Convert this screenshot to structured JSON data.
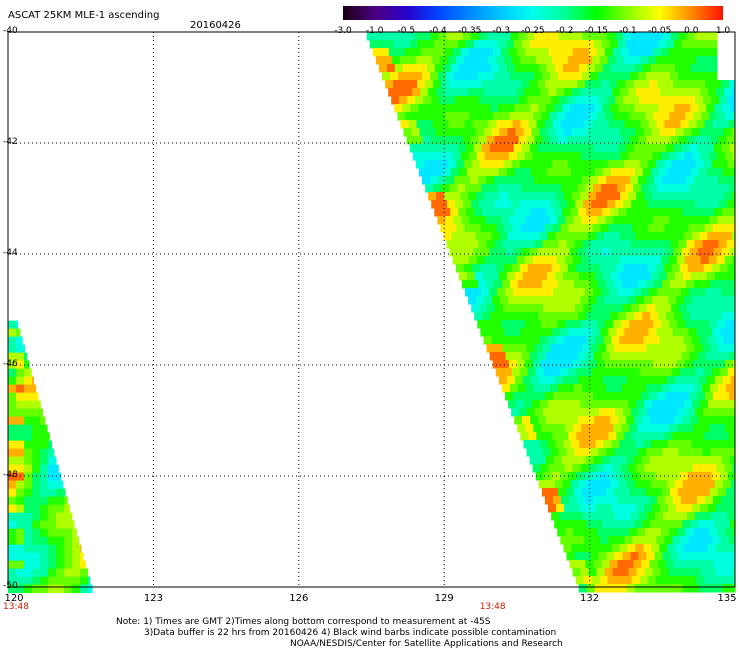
{
  "header": {
    "title": "ASCAT 25KM MLE-1 ascending",
    "date": "20160426"
  },
  "colorbar": {
    "labels": [
      "-3.0",
      "-1.0",
      "-0.5",
      "-0.4",
      "-0.35",
      "-0.3",
      "-0.25",
      "-0.2",
      "-0.15",
      "-0.1",
      "-0.05",
      "0.0",
      "1.0"
    ],
    "colors": [
      "#1a0010",
      "#4a0080",
      "#2a00cc",
      "#0044ff",
      "#0088ff",
      "#00c8ff",
      "#00ffee",
      "#00ff99",
      "#00ff00",
      "#88ff00",
      "#ffff00",
      "#ff8800",
      "#ff1100"
    ]
  },
  "chart_data": {
    "type": "heatmap",
    "title": "ASCAT 25KM MLE-1 ascending",
    "xlim": [
      120,
      135
    ],
    "ylim": [
      -50,
      -40
    ],
    "xticks": [
      120,
      123,
      126,
      129,
      132,
      135
    ],
    "yticks": [
      -40,
      -42,
      -44,
      -46,
      -48,
      -50
    ],
    "grid": true,
    "swaths": [
      {
        "name": "west",
        "lat_top": -45.2,
        "lon_left": 120.0,
        "lon_right_top": 120.2,
        "lon_right_bottom": 121.75,
        "dominant_value": -0.15
      },
      {
        "name": "east",
        "lat_top": -40.0,
        "lon_left_top": 127.4,
        "lon_left_bottom": 131.8,
        "lon_right": 135.0,
        "dominant_value": -0.2
      }
    ],
    "time_labels": [
      {
        "lon": 120,
        "text": "13:48"
      },
      {
        "lon": 130,
        "text": "13:48"
      }
    ]
  },
  "notes": [
    "Note: 1) Times are GMT 2)Times along bottom correspond to measurement at -45S",
    "3)Data buffer is 22 hrs from 20160426 4) Black wind barbs indicate possible contamination",
    "NOAA/NESDIS/Center for Satellite Applications and Research"
  ]
}
